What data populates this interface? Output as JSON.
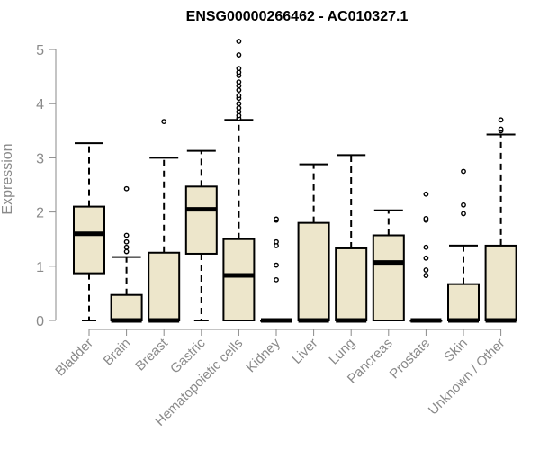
{
  "chart_data": {
    "type": "boxplot",
    "title": "ENSG00000266462 - AC010327.1",
    "xlabel": "",
    "ylabel": "Expression",
    "ylim": [
      0,
      5.2
    ],
    "yticks": [
      "0",
      "1",
      "2",
      "3",
      "4",
      "5"
    ],
    "box_fill": "#ede6cb",
    "box_stroke": "#000000",
    "axis_color": "#8a8a8a",
    "grid": false,
    "categories": [
      "Bladder",
      "Brain",
      "Breast",
      "Gastric",
      "Hematopoietic cells",
      "Kidney",
      "Liver",
      "Lung",
      "Pancreas",
      "Prostate",
      "Skin",
      "Unknown / Other"
    ],
    "boxes": [
      {
        "min": 0,
        "q1": 0.87,
        "median": 1.6,
        "q3": 2.1,
        "max": 3.27,
        "outliers": []
      },
      {
        "min": 0,
        "q1": 0,
        "median": 0,
        "q3": 0.47,
        "max": 1.17,
        "outliers": [
          1.27,
          1.35,
          1.45,
          1.57,
          2.43
        ]
      },
      {
        "min": 0,
        "q1": 0,
        "median": 0,
        "q3": 1.25,
        "max": 3.0,
        "outliers": [
          3.67
        ]
      },
      {
        "min": 0,
        "q1": 1.23,
        "median": 2.05,
        "q3": 2.47,
        "max": 3.13,
        "outliers": []
      },
      {
        "min": 0,
        "q1": 0,
        "median": 0.83,
        "q3": 1.5,
        "max": 3.7,
        "outliers": [
          3.73,
          3.78,
          3.85,
          3.92,
          4.0,
          4.1,
          4.15,
          4.25,
          4.33,
          4.4,
          4.52,
          4.58,
          4.65,
          4.9,
          5.15
        ]
      },
      {
        "min": 0,
        "q1": 0,
        "median": 0,
        "q3": 0,
        "max": 0,
        "outliers": [
          0.75,
          1.02,
          1.38,
          1.45,
          1.85,
          1.87
        ]
      },
      {
        "min": 0,
        "q1": 0,
        "median": 0,
        "q3": 1.8,
        "max": 2.88,
        "outliers": []
      },
      {
        "min": 0,
        "q1": 0,
        "median": 0,
        "q3": 1.33,
        "max": 3.05,
        "outliers": []
      },
      {
        "min": 0,
        "q1": 0,
        "median": 1.07,
        "q3": 1.57,
        "max": 2.03,
        "outliers": []
      },
      {
        "min": 0,
        "q1": 0,
        "median": 0,
        "q3": 0,
        "max": 0,
        "outliers": [
          0.83,
          0.93,
          1.15,
          1.35,
          1.85,
          1.88,
          2.33
        ]
      },
      {
        "min": 0,
        "q1": 0,
        "median": 0,
        "q3": 0.67,
        "max": 1.38,
        "outliers": [
          1.97,
          2.13,
          2.75
        ]
      },
      {
        "min": 0,
        "q1": 0,
        "median": 0,
        "q3": 1.38,
        "max": 3.43,
        "outliers": [
          3.5,
          3.53,
          3.7
        ]
      }
    ]
  }
}
